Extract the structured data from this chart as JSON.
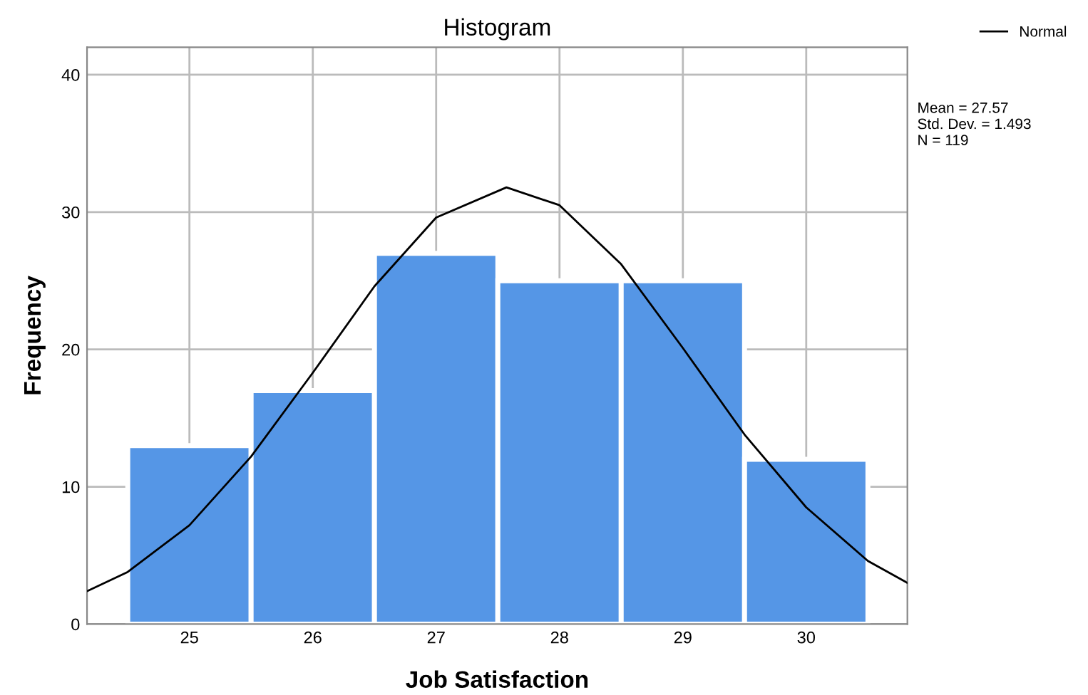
{
  "chart_data": {
    "type": "histogram",
    "title": "Histogram",
    "xlabel": "Job Satisfaction",
    "ylabel": "Frequency",
    "bins": [
      24.5,
      25.5,
      26.5,
      27.5,
      28.5,
      29.5,
      30.5
    ],
    "values": [
      13,
      17,
      27,
      25,
      25,
      12
    ],
    "color": "#5596e6",
    "series": [
      {
        "type": "line",
        "name": "Normal",
        "color": "#000000",
        "x": [
          24.17,
          24.5,
          25,
          25.5,
          26,
          26.5,
          27,
          27.57,
          28,
          28.5,
          29,
          29.5,
          30,
          30.5,
          30.82
        ],
        "values": [
          2.4,
          3.8,
          7.2,
          12.2,
          18.3,
          24.6,
          29.6,
          31.8,
          30.5,
          26.2,
          20.1,
          13.8,
          8.5,
          4.6,
          3.0
        ]
      }
    ],
    "xlim": [
      24.17,
      30.82
    ],
    "ylim": [
      0,
      42
    ],
    "xticks": [
      25,
      26,
      27,
      28,
      29,
      30
    ],
    "yticks": [
      0,
      10,
      20,
      30,
      40
    ],
    "grid": true,
    "legend": "top right",
    "line_style": "solid",
    "marker": "none",
    "annotations": [
      "Mean = 27.57",
      "Std. Dev. = 1.493",
      "N = 119"
    ]
  }
}
